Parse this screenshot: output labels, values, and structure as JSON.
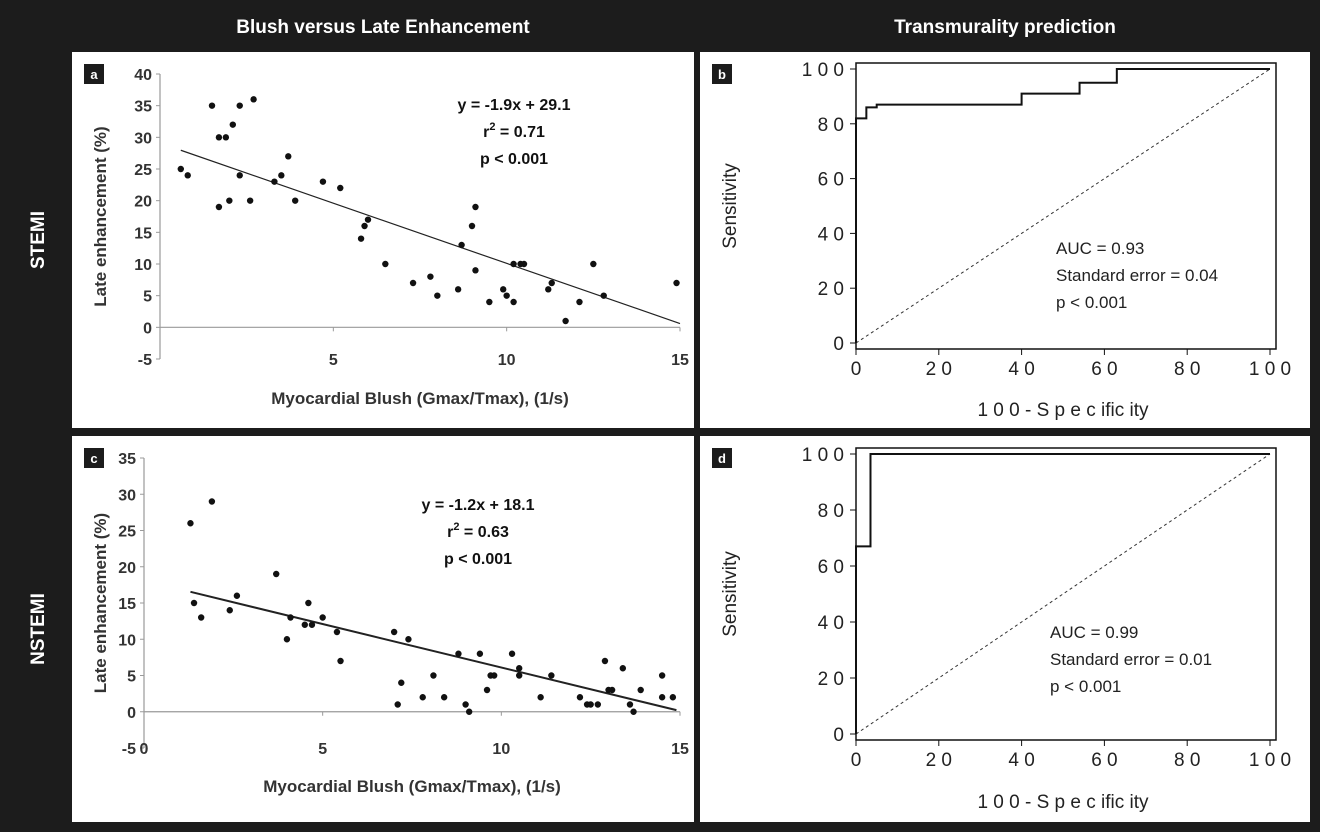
{
  "headers": {
    "left": "Blush versus Late Enhancement",
    "right": "Transmurality prediction"
  },
  "rows": {
    "top": "STEMI",
    "bottom": "NSTEMI"
  },
  "chart_data": [
    {
      "id": "a",
      "panel_label": "a",
      "type": "scatter",
      "xlabel": "Myocardial Blush (Gmax/Tmax), (1/s)",
      "ylabel": "Late enhancement (%)",
      "xlim": [
        0,
        15
      ],
      "ylim": [
        -5,
        40
      ],
      "x_ticks": [
        {
          "value": 5,
          "label": "5"
        },
        {
          "value": 10,
          "label": "10"
        },
        {
          "value": 15,
          "label": "15"
        }
      ],
      "y_ticks": [
        {
          "value": 40,
          "label": "40"
        },
        {
          "value": 35,
          "label": "35"
        },
        {
          "value": 30,
          "label": "30"
        },
        {
          "value": 25,
          "label": "25"
        },
        {
          "value": 20,
          "label": "20"
        },
        {
          "value": 15,
          "label": "15"
        },
        {
          "value": 10,
          "label": "10"
        },
        {
          "value": 5,
          "label": "5"
        },
        {
          "value": 0,
          "label": "0"
        },
        {
          "value": -5,
          "label": "-5"
        }
      ],
      "annotation": {
        "equation": "y = -1.9x + 29.1",
        "r2_prefix": "r",
        "r2_sup": "2",
        "r2_value": " = 0.71",
        "p": "p < 0.001"
      },
      "fit": {
        "slope": -1.9,
        "intercept": 29.1,
        "x_range": [
          0.6,
          15
        ]
      },
      "points": [
        [
          0.6,
          25
        ],
        [
          0.8,
          24
        ],
        [
          1.5,
          35
        ],
        [
          1.7,
          30
        ],
        [
          1.7,
          19
        ],
        [
          1.9,
          30
        ],
        [
          2.0,
          20
        ],
        [
          2.1,
          32
        ],
        [
          2.3,
          24
        ],
        [
          2.3,
          35
        ],
        [
          2.6,
          20
        ],
        [
          2.7,
          36
        ],
        [
          3.3,
          23
        ],
        [
          3.5,
          24
        ],
        [
          3.7,
          27
        ],
        [
          3.9,
          20
        ],
        [
          4.7,
          23
        ],
        [
          5.2,
          22
        ],
        [
          5.8,
          14
        ],
        [
          5.9,
          16
        ],
        [
          6.0,
          17
        ],
        [
          6.5,
          10
        ],
        [
          7.3,
          7
        ],
        [
          7.8,
          8
        ],
        [
          8.0,
          5
        ],
        [
          8.6,
          6
        ],
        [
          8.7,
          13
        ],
        [
          9.0,
          16
        ],
        [
          9.1,
          19
        ],
        [
          9.1,
          9
        ],
        [
          9.5,
          4
        ],
        [
          9.9,
          6
        ],
        [
          10.0,
          5
        ],
        [
          10.2,
          10
        ],
        [
          10.2,
          4
        ],
        [
          10.4,
          10
        ],
        [
          10.5,
          10
        ],
        [
          11.2,
          6
        ],
        [
          11.3,
          7
        ],
        [
          11.7,
          1
        ],
        [
          12.1,
          4
        ],
        [
          12.5,
          10
        ],
        [
          12.8,
          5
        ],
        [
          14.9,
          7
        ]
      ]
    },
    {
      "id": "b",
      "panel_label": "b",
      "type": "line",
      "xlabel": "1 0 0 - S p e c ific ity",
      "ylabel": "Sensitivity",
      "xlim": [
        0,
        100
      ],
      "ylim": [
        0,
        100
      ],
      "x_ticks": [
        {
          "value": 0,
          "label": "0"
        },
        {
          "value": 20,
          "label": "2 0"
        },
        {
          "value": 40,
          "label": "4 0"
        },
        {
          "value": 60,
          "label": "6 0"
        },
        {
          "value": 80,
          "label": "8 0"
        },
        {
          "value": 100,
          "label": "1 0 0"
        }
      ],
      "y_ticks": [
        {
          "value": 0,
          "label": "0"
        },
        {
          "value": 20,
          "label": "2 0"
        },
        {
          "value": 40,
          "label": "4 0"
        },
        {
          "value": 60,
          "label": "6 0"
        },
        {
          "value": 80,
          "label": "8 0"
        },
        {
          "value": 100,
          "label": "1 0 0"
        }
      ],
      "stats": {
        "auc": "AUC = 0.93",
        "se": "Standard error = 0.04",
        "p": "p < 0.001"
      },
      "roc_x": [
        0,
        0,
        2.5,
        2.5,
        5,
        5,
        40,
        40,
        54,
        54,
        63,
        63,
        100
      ],
      "roc_y": [
        0,
        82,
        82,
        86,
        86,
        87,
        87,
        91,
        91,
        95,
        95,
        100,
        100
      ]
    },
    {
      "id": "c",
      "panel_label": "c",
      "type": "scatter",
      "xlabel": "Myocardial Blush (Gmax/Tmax), (1/s)",
      "ylabel": "Late enhancement (%)",
      "xlim": [
        0,
        15
      ],
      "ylim": [
        -5,
        35
      ],
      "x_ticks": [
        {
          "value": 0,
          "label": "0"
        },
        {
          "value": 5,
          "label": "5"
        },
        {
          "value": 10,
          "label": "10"
        },
        {
          "value": 15,
          "label": "15"
        }
      ],
      "y_ticks": [
        {
          "value": 35,
          "label": "35"
        },
        {
          "value": 30,
          "label": "30"
        },
        {
          "value": 25,
          "label": "25"
        },
        {
          "value": 20,
          "label": "20"
        },
        {
          "value": 15,
          "label": "15"
        },
        {
          "value": 10,
          "label": "10"
        },
        {
          "value": 5,
          "label": "5"
        },
        {
          "value": 0,
          "label": "0"
        },
        {
          "value": -5,
          "label": "-5"
        }
      ],
      "annotation": {
        "equation": "y = -1.2x + 18.1",
        "r2_prefix": "r",
        "r2_sup": "2",
        "r2_value": " = 0.63",
        "p": "p < 0.001"
      },
      "fit": {
        "slope": -1.2,
        "intercept": 18.1,
        "x_range": [
          1.3,
          14.9
        ]
      },
      "points": [
        [
          1.3,
          26
        ],
        [
          1.4,
          15
        ],
        [
          1.6,
          13
        ],
        [
          1.9,
          29
        ],
        [
          2.4,
          14
        ],
        [
          2.6,
          16
        ],
        [
          3.7,
          19
        ],
        [
          4.0,
          10
        ],
        [
          4.1,
          13
        ],
        [
          4.5,
          12
        ],
        [
          4.6,
          15
        ],
        [
          4.7,
          12
        ],
        [
          5.0,
          13
        ],
        [
          5.4,
          11
        ],
        [
          5.5,
          7
        ],
        [
          7.0,
          11
        ],
        [
          7.1,
          1
        ],
        [
          7.2,
          4
        ],
        [
          7.4,
          10
        ],
        [
          7.8,
          2
        ],
        [
          8.1,
          5
        ],
        [
          8.4,
          2
        ],
        [
          8.8,
          8
        ],
        [
          9.0,
          1
        ],
        [
          9.1,
          0
        ],
        [
          9.4,
          8
        ],
        [
          9.6,
          3
        ],
        [
          9.7,
          5
        ],
        [
          9.8,
          5
        ],
        [
          10.3,
          8
        ],
        [
          10.5,
          6
        ],
        [
          10.5,
          5
        ],
        [
          11.1,
          2
        ],
        [
          11.4,
          5
        ],
        [
          12.2,
          2
        ],
        [
          12.4,
          1
        ],
        [
          12.5,
          1
        ],
        [
          12.7,
          1
        ],
        [
          12.9,
          7
        ],
        [
          13.0,
          3
        ],
        [
          13.1,
          3
        ],
        [
          13.4,
          6
        ],
        [
          13.6,
          1
        ],
        [
          13.7,
          0
        ],
        [
          13.9,
          3
        ],
        [
          14.5,
          5
        ],
        [
          14.5,
          2
        ],
        [
          14.8,
          2
        ]
      ]
    },
    {
      "id": "d",
      "panel_label": "d",
      "type": "line",
      "xlabel": "1 0 0 - S p e c ific ity",
      "ylabel": "Sensitivity",
      "xlim": [
        0,
        100
      ],
      "ylim": [
        0,
        100
      ],
      "x_ticks": [
        {
          "value": 0,
          "label": "0"
        },
        {
          "value": 20,
          "label": "2 0"
        },
        {
          "value": 40,
          "label": "4 0"
        },
        {
          "value": 60,
          "label": "6 0"
        },
        {
          "value": 80,
          "label": "8 0"
        },
        {
          "value": 100,
          "label": "1 0 0"
        }
      ],
      "y_ticks": [
        {
          "value": 0,
          "label": "0"
        },
        {
          "value": 20,
          "label": "2 0"
        },
        {
          "value": 40,
          "label": "4 0"
        },
        {
          "value": 60,
          "label": "6 0"
        },
        {
          "value": 80,
          "label": "8 0"
        },
        {
          "value": 100,
          "label": "1 0 0"
        }
      ],
      "stats": {
        "auc": "AUC = 0.99",
        "se": "Standard error = 0.01",
        "p": "p < 0.001"
      },
      "roc_x": [
        0,
        0,
        3.5,
        3.5,
        100
      ],
      "roc_y": [
        0,
        67,
        67,
        100,
        100
      ]
    }
  ]
}
